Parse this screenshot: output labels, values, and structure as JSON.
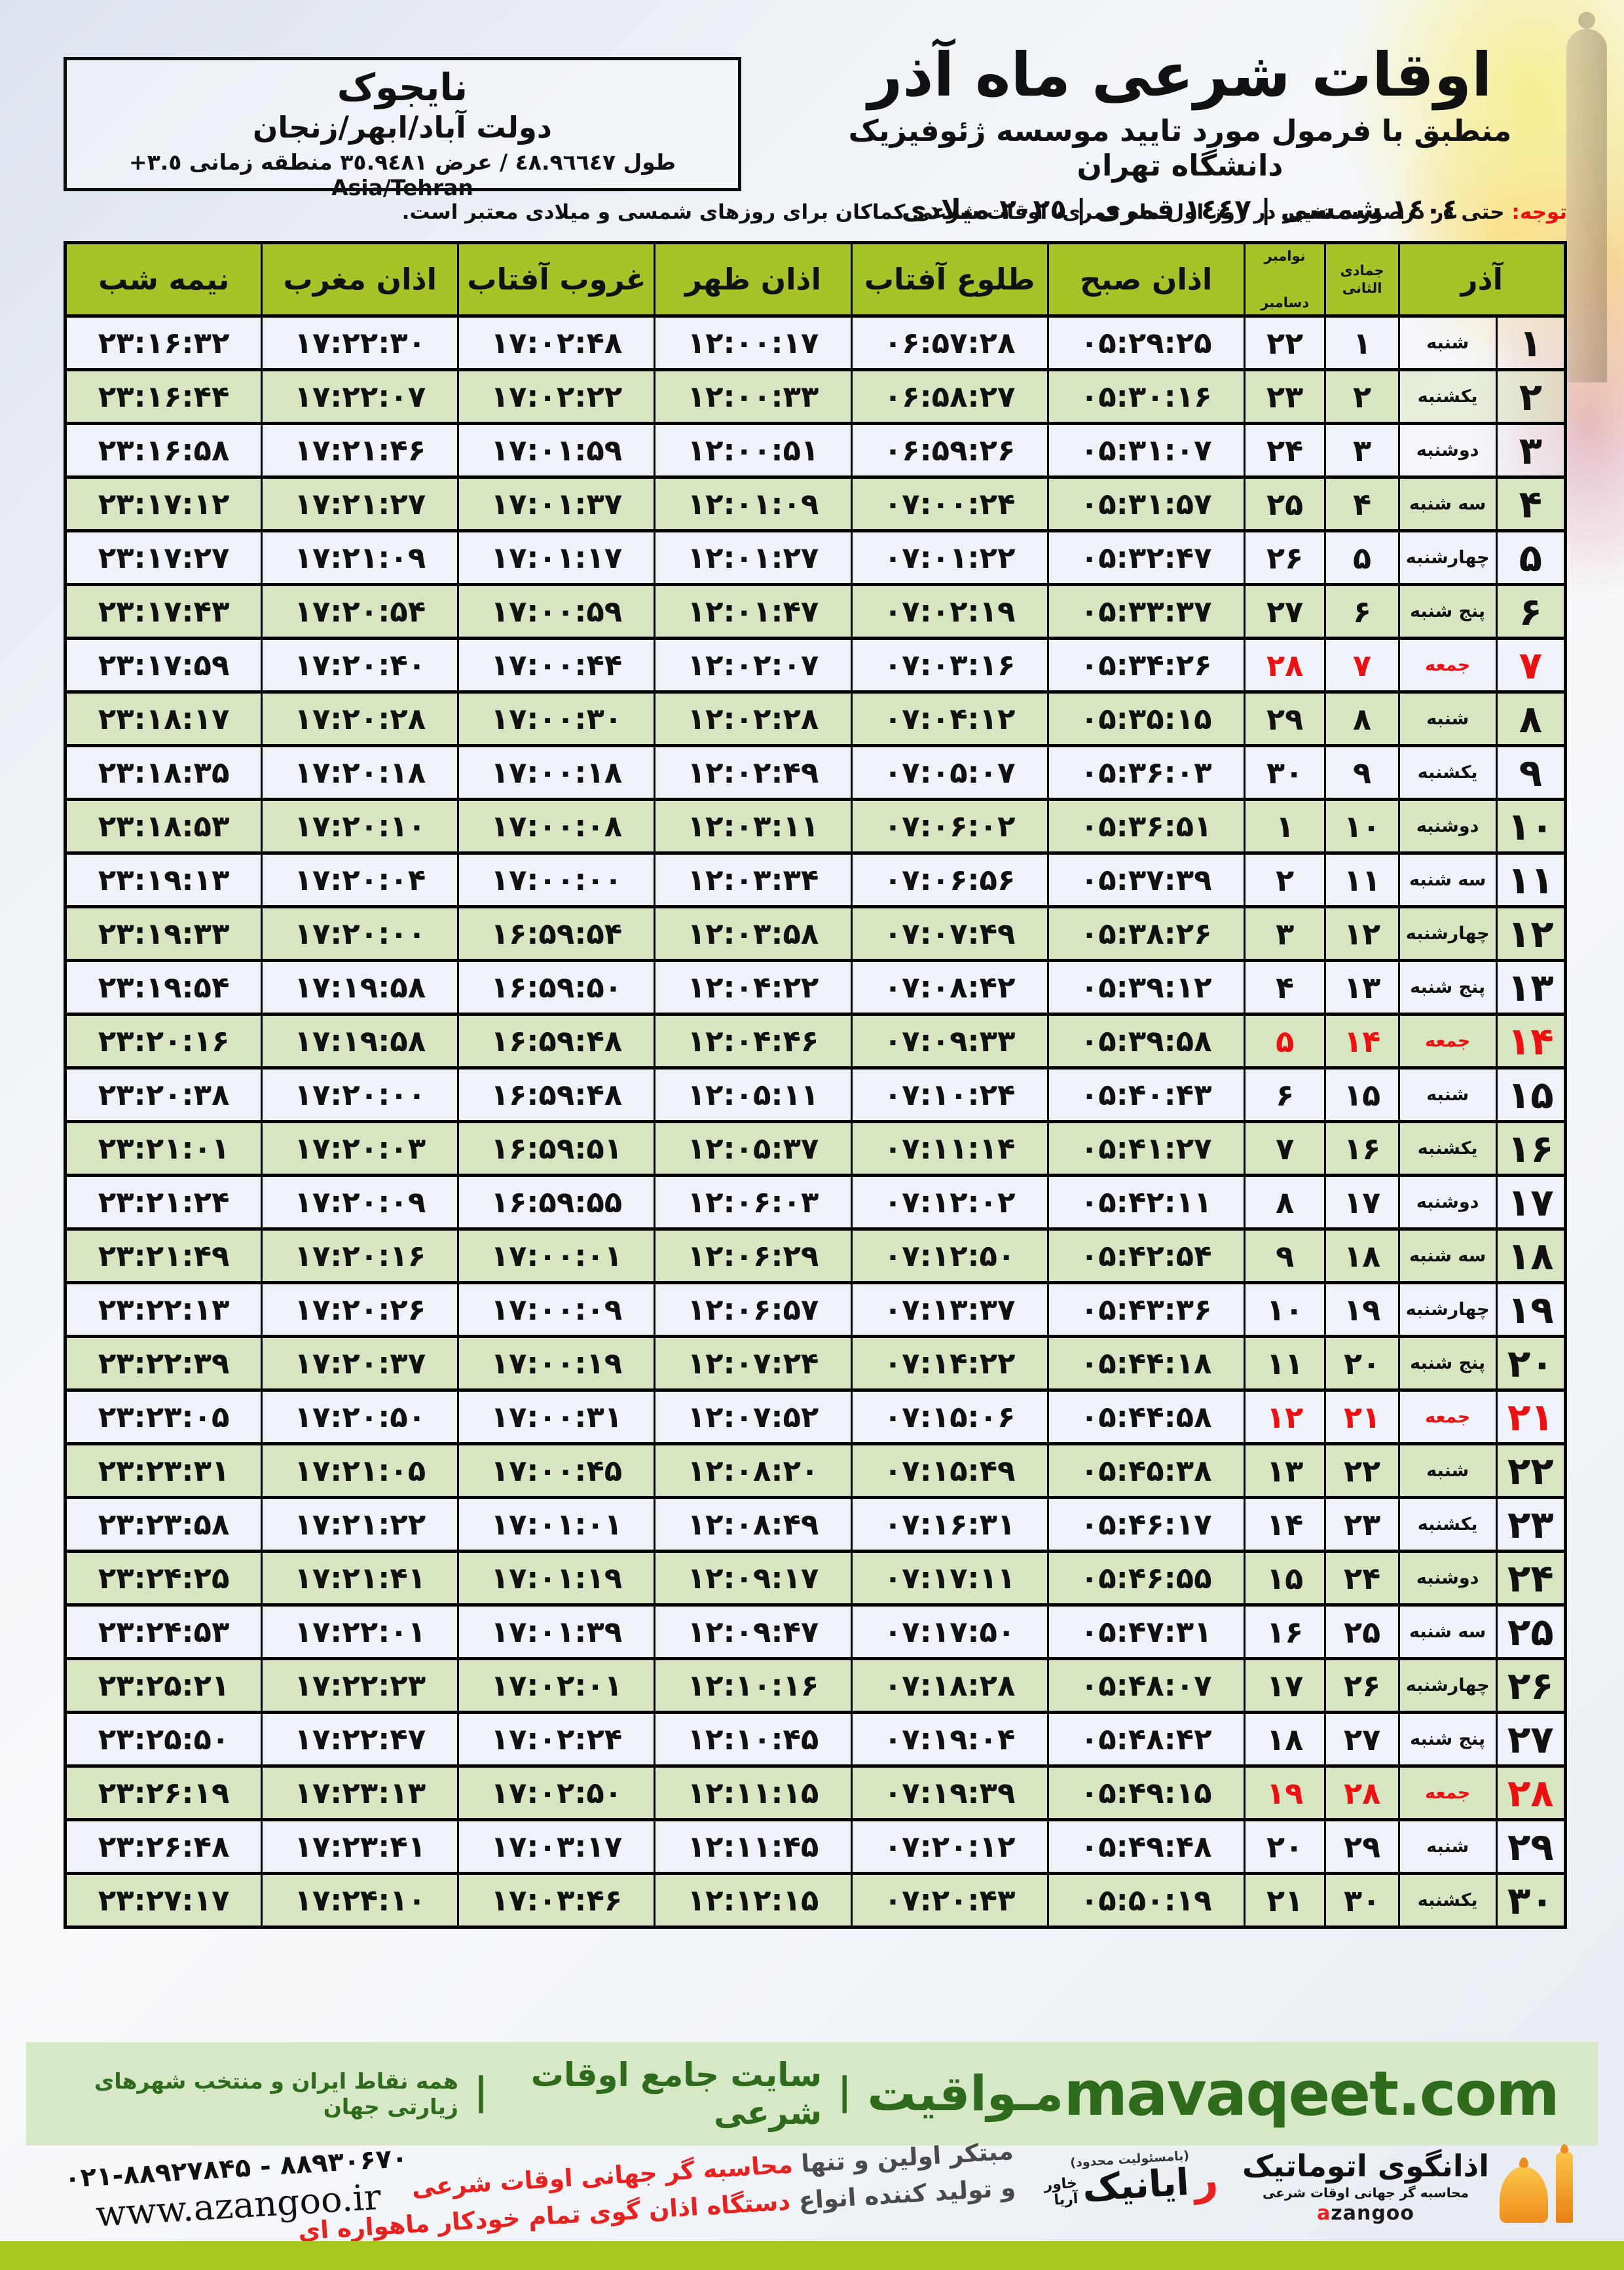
{
  "colors": {
    "hdr_green": "#a6c427",
    "row_green": "#d8e5c1",
    "row_light": "#eff2f8",
    "friday_red": "#ee1010",
    "band_bg": "#d6e8c5",
    "brand_green": "#2e6b1d",
    "accent_red": "#e8201e",
    "orange": "#ef8d1c",
    "bottom_band": "#a7c61f"
  },
  "header": {
    "title": "اوقات شرعی ماه آذر",
    "subtitle": "منطبق با فرمول مورد تایید موسسه ژئوفیزیک دانشگاه تهران",
    "era_line": "١٤٠٤ شمسی | ١٤٤٧ قمری | ٢٠٢٥ میلادی",
    "location": {
      "city": "نایجوک",
      "region": "دولت آباد/ابهر/زنجان",
      "coords": "طول ٤٨.٩٦٦٤٧ / عرض ٣٥.٩٤٨١ منطقه زمانی ٣.٥+ Asia/Tehran"
    },
    "note_label": "توجه:",
    "note": " حتی در درصورت تغییر در روز اول ماه قمری، اوقات شرعی کماکان برای روزهای شمسی و میلادی معتبر است."
  },
  "table": {
    "month_header": "آذر",
    "hijri_header": "جمادی الثانی",
    "greg_header_top": "نوامبر",
    "greg_header_bottom": "دسامبر",
    "columns": [
      "اذان صبح",
      "طلوع آفتاب",
      "اذان ظهر",
      "غروب آفتاب",
      "اذان مغرب",
      "نیمه شب"
    ],
    "rows": [
      {
        "day": "۱",
        "weekday": "شنبه",
        "hijri": "۱",
        "greg": "۲۲",
        "times": [
          "۰۵:۲۹:۲۵",
          "۰۶:۵۷:۲۸",
          "۱۲:۰۰:۱۷",
          "۱۷:۰۲:۴۸",
          "۱۷:۲۲:۳۰",
          "۲۳:۱۶:۳۲"
        ],
        "friday": false
      },
      {
        "day": "۲",
        "weekday": "یکشنبه",
        "hijri": "۲",
        "greg": "۲۳",
        "times": [
          "۰۵:۳۰:۱۶",
          "۰۶:۵۸:۲۷",
          "۱۲:۰۰:۳۳",
          "۱۷:۰۲:۲۲",
          "۱۷:۲۲:۰۷",
          "۲۳:۱۶:۴۴"
        ],
        "friday": false
      },
      {
        "day": "۳",
        "weekday": "دوشنبه",
        "hijri": "۳",
        "greg": "۲۴",
        "times": [
          "۰۵:۳۱:۰۷",
          "۰۶:۵۹:۲۶",
          "۱۲:۰۰:۵۱",
          "۱۷:۰۱:۵۹",
          "۱۷:۲۱:۴۶",
          "۲۳:۱۶:۵۸"
        ],
        "friday": false
      },
      {
        "day": "۴",
        "weekday": "سه شنبه",
        "hijri": "۴",
        "greg": "۲۵",
        "times": [
          "۰۵:۳۱:۵۷",
          "۰۷:۰۰:۲۴",
          "۱۲:۰۱:۰۹",
          "۱۷:۰۱:۳۷",
          "۱۷:۲۱:۲۷",
          "۲۳:۱۷:۱۲"
        ],
        "friday": false
      },
      {
        "day": "۵",
        "weekday": "چهارشنبه",
        "hijri": "۵",
        "greg": "۲۶",
        "times": [
          "۰۵:۳۲:۴۷",
          "۰۷:۰۱:۲۲",
          "۱۲:۰۱:۲۷",
          "۱۷:۰۱:۱۷",
          "۱۷:۲۱:۰۹",
          "۲۳:۱۷:۲۷"
        ],
        "friday": false
      },
      {
        "day": "۶",
        "weekday": "پنج شنبه",
        "hijri": "۶",
        "greg": "۲۷",
        "times": [
          "۰۵:۳۳:۳۷",
          "۰۷:۰۲:۱۹",
          "۱۲:۰۱:۴۷",
          "۱۷:۰۰:۵۹",
          "۱۷:۲۰:۵۴",
          "۲۳:۱۷:۴۳"
        ],
        "friday": false
      },
      {
        "day": "۷",
        "weekday": "جمعه",
        "hijri": "۷",
        "greg": "۲۸",
        "times": [
          "۰۵:۳۴:۲۶",
          "۰۷:۰۳:۱۶",
          "۱۲:۰۲:۰۷",
          "۱۷:۰۰:۴۴",
          "۱۷:۲۰:۴۰",
          "۲۳:۱۷:۵۹"
        ],
        "friday": true
      },
      {
        "day": "۸",
        "weekday": "شنبه",
        "hijri": "۸",
        "greg": "۲۹",
        "times": [
          "۰۵:۳۵:۱۵",
          "۰۷:۰۴:۱۲",
          "۱۲:۰۲:۲۸",
          "۱۷:۰۰:۳۰",
          "۱۷:۲۰:۲۸",
          "۲۳:۱۸:۱۷"
        ],
        "friday": false
      },
      {
        "day": "۹",
        "weekday": "یکشنبه",
        "hijri": "۹",
        "greg": "۳۰",
        "times": [
          "۰۵:۳۶:۰۳",
          "۰۷:۰۵:۰۷",
          "۱۲:۰۲:۴۹",
          "۱۷:۰۰:۱۸",
          "۱۷:۲۰:۱۸",
          "۲۳:۱۸:۳۵"
        ],
        "friday": false
      },
      {
        "day": "۱۰",
        "weekday": "دوشنبه",
        "hijri": "۱۰",
        "greg": "۱",
        "times": [
          "۰۵:۳۶:۵۱",
          "۰۷:۰۶:۰۲",
          "۱۲:۰۳:۱۱",
          "۱۷:۰۰:۰۸",
          "۱۷:۲۰:۱۰",
          "۲۳:۱۸:۵۳"
        ],
        "friday": false
      },
      {
        "day": "۱۱",
        "weekday": "سه شنبه",
        "hijri": "۱۱",
        "greg": "۲",
        "times": [
          "۰۵:۳۷:۳۹",
          "۰۷:۰۶:۵۶",
          "۱۲:۰۳:۳۴",
          "۱۷:۰۰:۰۰",
          "۱۷:۲۰:۰۴",
          "۲۳:۱۹:۱۳"
        ],
        "friday": false
      },
      {
        "day": "۱۲",
        "weekday": "چهارشنبه",
        "hijri": "۱۲",
        "greg": "۳",
        "times": [
          "۰۵:۳۸:۲۶",
          "۰۷:۰۷:۴۹",
          "۱۲:۰۳:۵۸",
          "۱۶:۵۹:۵۴",
          "۱۷:۲۰:۰۰",
          "۲۳:۱۹:۳۳"
        ],
        "friday": false
      },
      {
        "day": "۱۳",
        "weekday": "پنج شنبه",
        "hijri": "۱۳",
        "greg": "۴",
        "times": [
          "۰۵:۳۹:۱۲",
          "۰۷:۰۸:۴۲",
          "۱۲:۰۴:۲۲",
          "۱۶:۵۹:۵۰",
          "۱۷:۱۹:۵۸",
          "۲۳:۱۹:۵۴"
        ],
        "friday": false
      },
      {
        "day": "۱۴",
        "weekday": "جمعه",
        "hijri": "۱۴",
        "greg": "۵",
        "times": [
          "۰۵:۳۹:۵۸",
          "۰۷:۰۹:۳۳",
          "۱۲:۰۴:۴۶",
          "۱۶:۵۹:۴۸",
          "۱۷:۱۹:۵۸",
          "۲۳:۲۰:۱۶"
        ],
        "friday": true
      },
      {
        "day": "۱۵",
        "weekday": "شنبه",
        "hijri": "۱۵",
        "greg": "۶",
        "times": [
          "۰۵:۴۰:۴۳",
          "۰۷:۱۰:۲۴",
          "۱۲:۰۵:۱۱",
          "۱۶:۵۹:۴۸",
          "۱۷:۲۰:۰۰",
          "۲۳:۲۰:۳۸"
        ],
        "friday": false
      },
      {
        "day": "۱۶",
        "weekday": "یکشنبه",
        "hijri": "۱۶",
        "greg": "۷",
        "times": [
          "۰۵:۴۱:۲۷",
          "۰۷:۱۱:۱۴",
          "۱۲:۰۵:۳۷",
          "۱۶:۵۹:۵۱",
          "۱۷:۲۰:۰۳",
          "۲۳:۲۱:۰۱"
        ],
        "friday": false
      },
      {
        "day": "۱۷",
        "weekday": "دوشنبه",
        "hijri": "۱۷",
        "greg": "۸",
        "times": [
          "۰۵:۴۲:۱۱",
          "۰۷:۱۲:۰۲",
          "۱۲:۰۶:۰۳",
          "۱۶:۵۹:۵۵",
          "۱۷:۲۰:۰۹",
          "۲۳:۲۱:۲۴"
        ],
        "friday": false
      },
      {
        "day": "۱۸",
        "weekday": "سه شنبه",
        "hijri": "۱۸",
        "greg": "۹",
        "times": [
          "۰۵:۴۲:۵۴",
          "۰۷:۱۲:۵۰",
          "۱۲:۰۶:۲۹",
          "۱۷:۰۰:۰۱",
          "۱۷:۲۰:۱۶",
          "۲۳:۲۱:۴۹"
        ],
        "friday": false
      },
      {
        "day": "۱۹",
        "weekday": "چهارشنبه",
        "hijri": "۱۹",
        "greg": "۱۰",
        "times": [
          "۰۵:۴۳:۳۶",
          "۰۷:۱۳:۳۷",
          "۱۲:۰۶:۵۷",
          "۱۷:۰۰:۰۹",
          "۱۷:۲۰:۲۶",
          "۲۳:۲۲:۱۳"
        ],
        "friday": false
      },
      {
        "day": "۲۰",
        "weekday": "پنج شنبه",
        "hijri": "۲۰",
        "greg": "۱۱",
        "times": [
          "۰۵:۴۴:۱۸",
          "۰۷:۱۴:۲۲",
          "۱۲:۰۷:۲۴",
          "۱۷:۰۰:۱۹",
          "۱۷:۲۰:۳۷",
          "۲۳:۲۲:۳۹"
        ],
        "friday": false
      },
      {
        "day": "۲۱",
        "weekday": "جمعه",
        "hijri": "۲۱",
        "greg": "۱۲",
        "times": [
          "۰۵:۴۴:۵۸",
          "۰۷:۱۵:۰۶",
          "۱۲:۰۷:۵۲",
          "۱۷:۰۰:۳۱",
          "۱۷:۲۰:۵۰",
          "۲۳:۲۳:۰۵"
        ],
        "friday": true
      },
      {
        "day": "۲۲",
        "weekday": "شنبه",
        "hijri": "۲۲",
        "greg": "۱۳",
        "times": [
          "۰۵:۴۵:۳۸",
          "۰۷:۱۵:۴۹",
          "۱۲:۰۸:۲۰",
          "۱۷:۰۰:۴۵",
          "۱۷:۲۱:۰۵",
          "۲۳:۲۳:۳۱"
        ],
        "friday": false
      },
      {
        "day": "۲۳",
        "weekday": "یکشنبه",
        "hijri": "۲۳",
        "greg": "۱۴",
        "times": [
          "۰۵:۴۶:۱۷",
          "۰۷:۱۶:۳۱",
          "۱۲:۰۸:۴۹",
          "۱۷:۰۱:۰۱",
          "۱۷:۲۱:۲۲",
          "۲۳:۲۳:۵۸"
        ],
        "friday": false
      },
      {
        "day": "۲۴",
        "weekday": "دوشنبه",
        "hijri": "۲۴",
        "greg": "۱۵",
        "times": [
          "۰۵:۴۶:۵۵",
          "۰۷:۱۷:۱۱",
          "۱۲:۰۹:۱۷",
          "۱۷:۰۱:۱۹",
          "۱۷:۲۱:۴۱",
          "۲۳:۲۴:۲۵"
        ],
        "friday": false
      },
      {
        "day": "۲۵",
        "weekday": "سه شنبه",
        "hijri": "۲۵",
        "greg": "۱۶",
        "times": [
          "۰۵:۴۷:۳۱",
          "۰۷:۱۷:۵۰",
          "۱۲:۰۹:۴۷",
          "۱۷:۰۱:۳۹",
          "۱۷:۲۲:۰۱",
          "۲۳:۲۴:۵۳"
        ],
        "friday": false
      },
      {
        "day": "۲۶",
        "weekday": "چهارشنبه",
        "hijri": "۲۶",
        "greg": "۱۷",
        "times": [
          "۰۵:۴۸:۰۷",
          "۰۷:۱۸:۲۸",
          "۱۲:۱۰:۱۶",
          "۱۷:۰۲:۰۱",
          "۱۷:۲۲:۲۳",
          "۲۳:۲۵:۲۱"
        ],
        "friday": false
      },
      {
        "day": "۲۷",
        "weekday": "پنج شنبه",
        "hijri": "۲۷",
        "greg": "۱۸",
        "times": [
          "۰۵:۴۸:۴۲",
          "۰۷:۱۹:۰۴",
          "۱۲:۱۰:۴۵",
          "۱۷:۰۲:۲۴",
          "۱۷:۲۲:۴۷",
          "۲۳:۲۵:۵۰"
        ],
        "friday": false
      },
      {
        "day": "۲۸",
        "weekday": "جمعه",
        "hijri": "۲۸",
        "greg": "۱۹",
        "times": [
          "۰۵:۴۹:۱۵",
          "۰۷:۱۹:۳۹",
          "۱۲:۱۱:۱۵",
          "۱۷:۰۲:۵۰",
          "۱۷:۲۳:۱۳",
          "۲۳:۲۶:۱۹"
        ],
        "friday": true
      },
      {
        "day": "۲۹",
        "weekday": "شنبه",
        "hijri": "۲۹",
        "greg": "۲۰",
        "times": [
          "۰۵:۴۹:۴۸",
          "۰۷:۲۰:۱۲",
          "۱۲:۱۱:۴۵",
          "۱۷:۰۳:۱۷",
          "۱۷:۲۳:۴۱",
          "۲۳:۲۶:۴۸"
        ],
        "friday": false
      },
      {
        "day": "۳۰",
        "weekday": "یکشنبه",
        "hijri": "۳۰",
        "greg": "۲۱",
        "times": [
          "۰۵:۵۰:۱۹",
          "۰۷:۲۰:۴۳",
          "۱۲:۱۲:۱۵",
          "۱۷:۰۳:۴۶",
          "۱۷:۲۴:۱۰",
          "۲۳:۲۷:۱۷"
        ],
        "friday": false
      }
    ]
  },
  "mavaqeet": {
    "site_en": "mavaqeet.com",
    "name_fa": "مـواقیت",
    "sep": "|",
    "desc": "سایت جامع اوقات شرعی",
    "tagline": "همه نقاط ایران و منتخب شهرهای زیارتی جهان"
  },
  "footer": {
    "phone": "۰۲۱-۸۸۹۲۷۸۴۵ - ۸۸۹۳۰۶۷۰",
    "website": "www.azangoo.ir",
    "slogan_l1_a": "مبتکر اولین و تنها ",
    "slogan_l1_b": "محاسبه گر جهانی اوقات شرعی",
    "slogan_l2_a": "و تولید کننده انواع ",
    "slogan_l2_b": "دستگاه اذان گوی تمام خودکار ماهواره ای",
    "rayanik_small": "(بامسئولیت محدود)",
    "rayanik_reh": "ر",
    "rayanik_name": "ایانیک",
    "rayanik_sub_1": "خاور",
    "rayanik_sub_2": "آریا",
    "azangoo_fa": "اذانگوی اتوماتیک",
    "azangoo_sub": "محاسبه گر جهانی اوقات شرعی",
    "azangoo_en_a": "a",
    "azangoo_en_rest": "zangoo"
  }
}
